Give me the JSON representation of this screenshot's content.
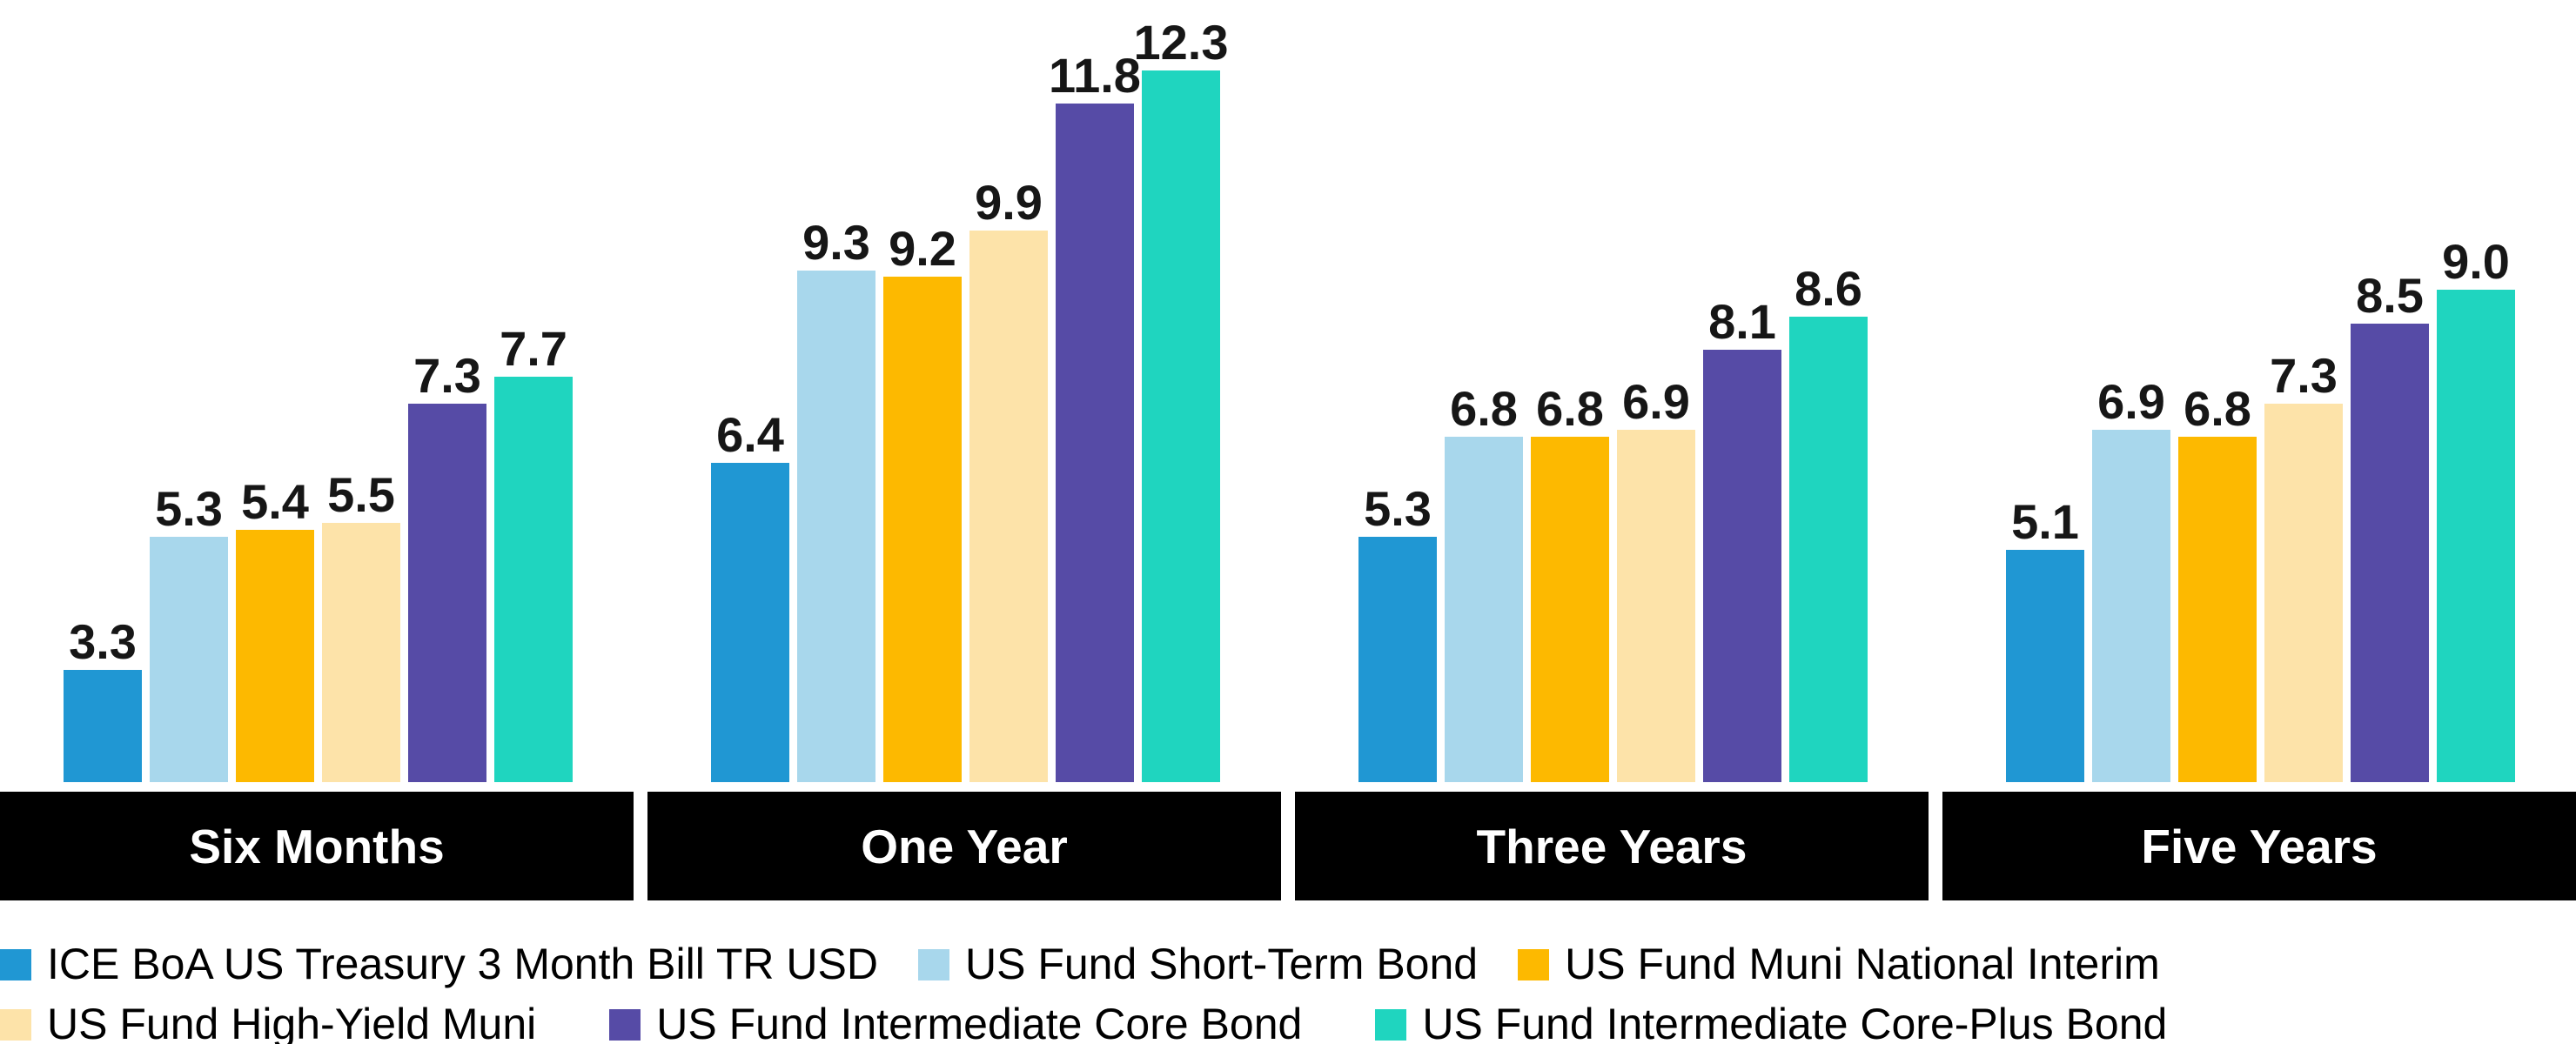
{
  "chart_data": {
    "type": "bar",
    "title": "",
    "categories": [
      "Six Months",
      "One Year",
      "Three Years",
      "Five Years"
    ],
    "series": [
      {
        "name": "ICE BoA US Treasury 3 Month Bill TR USD",
        "color": "#2097d3",
        "values": [
          3.3,
          6.4,
          5.3,
          5.1
        ]
      },
      {
        "name": "US Fund Short-Term Bond",
        "color": "#a8d7ec",
        "values": [
          5.3,
          9.3,
          6.8,
          6.9
        ]
      },
      {
        "name": "US Fund Muni National Interim",
        "color": "#fdb900",
        "values": [
          5.4,
          9.2,
          6.8,
          6.8
        ]
      },
      {
        "name": "US Fund High-Yield Muni",
        "color": "#fde3a9",
        "values": [
          5.5,
          9.9,
          6.9,
          7.3
        ]
      },
      {
        "name": "US Fund Intermediate Core Bond",
        "color": "#564ba6",
        "values": [
          7.3,
          11.8,
          8.1,
          8.5
        ]
      },
      {
        "name": "US Fund Intermediate Core-Plus Bond",
        "color": "#1fd5bf",
        "values": [
          7.7,
          12.3,
          8.6,
          9.0
        ]
      }
    ],
    "value_label_decimals": 1,
    "value_labels": {
      "Six Months": [
        "3.3",
        "5.3",
        "5.4",
        "5.5",
        "7.3",
        "7.7"
      ],
      "One Year": [
        "6.4",
        "9.3",
        "9.2",
        "9.9",
        "11.8",
        "12.3"
      ],
      "Three Years": [
        "5.3",
        "6.8",
        "6.8",
        "6.9",
        "8.1",
        "8.6"
      ],
      "Five Years": [
        "5.1",
        "6.9",
        "6.8",
        "7.3",
        "8.5",
        "9.0"
      ]
    },
    "grid": false,
    "axis_ticks_visible": false,
    "implied_axis_min": 1.6,
    "legend_position": "bottom-left",
    "legend_rows": [
      [
        "ICE BoA US Treasury 3 Month Bill TR USD",
        "US Fund Short-Term Bond",
        "US Fund Muni National Interim"
      ],
      [
        "US Fund High-Yield Muni",
        "US Fund Intermediate Core Bond",
        "US Fund Intermediate Core-Plus Bond"
      ]
    ]
  },
  "style_colors": {
    "background": "#ffffff",
    "category_band_background": "#000000",
    "category_band_text": "#ffffff",
    "value_label_text": "#161616",
    "legend_text": "#000000"
  }
}
